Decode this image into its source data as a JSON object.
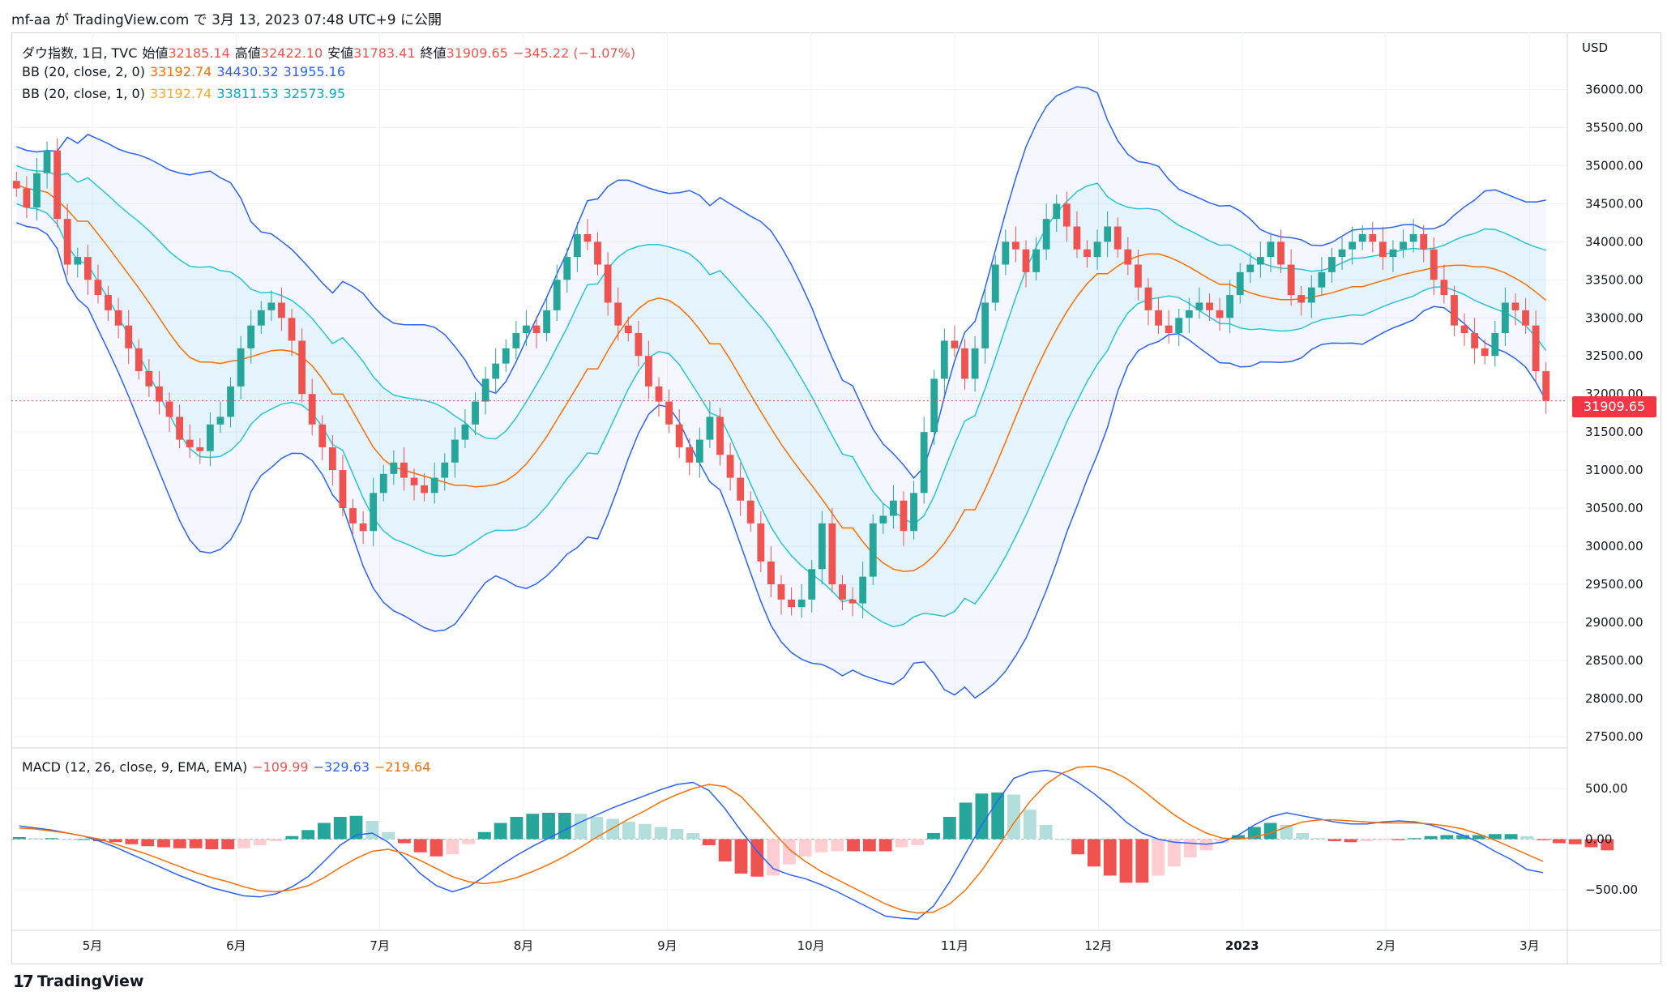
{
  "caption": "mf-aa が TradingView.com で 3月 13, 2023 07:48 UTC+9 に公開",
  "brand": "TradingView",
  "currency": "USD",
  "legend": {
    "symbol": "ダウ指数, 1日, TVC",
    "open_label": "始値",
    "open": "32185.14",
    "high_label": "高値",
    "high": "32422.10",
    "low_label": "安値",
    "low": "31783.41",
    "close_label": "終値",
    "close": "31909.65",
    "change": "−345.22 (−1.07%)",
    "bb2_label": "BB (20, close, 2, 0)",
    "bb2_basis": "33192.74",
    "bb2_upper": "34430.32",
    "bb2_lower": "31955.16",
    "bb1_label": "BB (20, close, 1, 0)",
    "bb1_basis": "33192.74",
    "bb1_upper": "33811.53",
    "bb1_lower": "32573.95",
    "macd_label": "MACD (12, 26, close, 9, EMA, EMA)",
    "macd_hist": "−109.99",
    "macd_line": "−329.63",
    "macd_signal": "−219.64"
  },
  "last_price_tag": "31909.65",
  "colors": {
    "up": "#26a69a",
    "down": "#ef5350",
    "bb2": "#2962ff",
    "bb1": "#26c6da",
    "basis": "#ff6d00",
    "hist_up_strong": "#26a69a",
    "hist_up_weak": "#b2dfdb",
    "hist_down_strong": "#ef5350",
    "hist_down_weak": "#ffcdd2"
  },
  "chart_data": [
    {
      "type": "candlestick",
      "y_axis_ticks": [
        27500,
        28000,
        28500,
        29000,
        29500,
        30000,
        30500,
        31000,
        31500,
        32000,
        32500,
        33000,
        33500,
        34000,
        34500,
        35000,
        35500,
        36000
      ],
      "y_tick_labels": [
        "27500.00",
        "28000.00",
        "28500.00",
        "29000.00",
        "29500.00",
        "30000.00",
        "30500.00",
        "31000.00",
        "31500.00",
        "32000.00",
        "32500.00",
        "33000.00",
        "33500.00",
        "34000.00",
        "34500.00",
        "35000.00",
        "35500.00",
        "36000.00"
      ],
      "ylim": [
        27350,
        36750
      ],
      "x_tick_labels": [
        "5月",
        "6月",
        "7月",
        "8月",
        "9月",
        "10月",
        "11月",
        "12月",
        "2023",
        "2月",
        "3月"
      ],
      "series": [
        {
          "name": "close",
          "values": [
            34700,
            34450,
            34900,
            35200,
            34300,
            33700,
            33800,
            33500,
            33300,
            33100,
            32900,
            32600,
            32300,
            32100,
            31900,
            31700,
            31400,
            31300,
            31250,
            31600,
            31700,
            32100,
            32600,
            32900,
            33100,
            33200,
            33000,
            32700,
            32000,
            31600,
            31300,
            31000,
            30500,
            30300,
            30200,
            30700,
            30950,
            31100,
            30900,
            30800,
            30700,
            30900,
            31100,
            31400,
            31600,
            31900,
            32200,
            32400,
            32600,
            32800,
            32900,
            32800,
            33100,
            33500,
            33800,
            34100,
            34000,
            33700,
            33200,
            32900,
            32800,
            32500,
            32100,
            31900,
            31600,
            31300,
            31100,
            31400,
            31700,
            31200,
            30900,
            30600,
            30300,
            29800,
            29500,
            29300,
            29200,
            29300,
            29700,
            30300,
            29500,
            29300,
            29250,
            29600,
            30300,
            30400,
            30600,
            30200,
            30700,
            31500,
            32200,
            32700,
            32600,
            32200,
            32600,
            33200,
            33700,
            34000,
            33900,
            33600,
            33900,
            34300,
            34500,
            34200,
            33900,
            33800,
            34000,
            34200,
            33900,
            33700,
            33400,
            33100,
            32900,
            32800,
            33000,
            33100,
            33200,
            33100,
            33000,
            33300,
            33600,
            33700,
            33800,
            34000,
            33700,
            33300,
            33200,
            33400,
            33600,
            33800,
            33900,
            34000,
            34100,
            34000,
            33800,
            33900,
            34000,
            34100,
            33900,
            33500,
            33300,
            32900,
            32800,
            32600,
            32500,
            32800,
            33200,
            33100,
            32900,
            32300,
            31910
          ]
        },
        {
          "name": "BB basis",
          "values": [
            34750,
            34700,
            34680,
            34650,
            34550,
            34420,
            34270,
            34100,
            33930,
            33750,
            33570,
            33390,
            33200,
            33000,
            32800,
            32620,
            32480,
            32420,
            32400,
            32430,
            32450,
            32490,
            32530,
            32570,
            32580,
            32560,
            32490,
            32370,
            32200,
            32000,
            31770,
            31530,
            31300,
            31140,
            31040,
            31000,
            30960,
            30920,
            30880,
            30840,
            30800,
            30780,
            30790,
            30810,
            30860,
            30950,
            31080,
            31250,
            31440,
            31660,
            31880,
            32100,
            32330,
            32570,
            32790,
            32980,
            33120,
            33220,
            33260,
            33230,
            33140,
            33010,
            32850,
            32660,
            32450,
            32220,
            31990,
            31770,
            31550,
            31340,
            31150,
            30970,
            30800,
            30620,
            30430,
            30240,
            30060,
            29900,
            29780,
            29700,
            29670,
            29680,
            29760,
            29880,
            30040,
            30240,
            30480,
            30750,
            31050,
            31370,
            31700,
            32020,
            32320,
            32600,
            32850,
            33080,
            33280,
            33450,
            33580,
            33680,
            33760,
            33810,
            33840,
            33840,
            33800,
            33740,
            33670,
            33590,
            33510,
            33440,
            33380,
            33330,
            33290,
            33260,
            33240,
            33240,
            33250,
            33270,
            33300,
            33330,
            33370,
            33410,
            33450,
            33490,
            33530,
            33570,
            33600,
            33630,
            33660,
            33680,
            33690,
            33690,
            33670,
            33640,
            33590,
            33520,
            33440,
            33340,
            33230
          ]
        }
      ]
    },
    {
      "type": "macd",
      "y_axis_ticks": [
        -500,
        0,
        500
      ],
      "y_tick_labels": [
        "−500.00",
        "0.00",
        "500.00"
      ],
      "ylim": [
        -900,
        900
      ],
      "series": [
        {
          "name": "MACD",
          "values": [
            130,
            110,
            90,
            60,
            30,
            -20,
            -80,
            -150,
            -220,
            -290,
            -360,
            -420,
            -480,
            -520,
            -560,
            -570,
            -540,
            -470,
            -370,
            -220,
            -60,
            40,
            60,
            -30,
            -180,
            -340,
            -460,
            -520,
            -470,
            -370,
            -260,
            -160,
            -70,
            10,
            90,
            170,
            240,
            310,
            370,
            430,
            490,
            540,
            560,
            480,
            300,
            80,
            -120,
            -290,
            -350,
            -390,
            -450,
            -520,
            -600,
            -680,
            -760,
            -780,
            -790,
            -660,
            -420,
            -140,
            140,
            380,
            600,
            660,
            680,
            650,
            560,
            450,
            320,
            170,
            60,
            0,
            -30,
            -40,
            -50,
            -30,
            40,
            140,
            220,
            260,
            230,
            200,
            170,
            150,
            150,
            170,
            180,
            170,
            140,
            90,
            40,
            -30,
            -120,
            -200,
            -300,
            -330
          ]
        },
        {
          "name": "Signal",
          "values": [
            110,
            100,
            80,
            60,
            30,
            0,
            -50,
            -100,
            -150,
            -210,
            -270,
            -330,
            -380,
            -420,
            -470,
            -510,
            -520,
            -500,
            -460,
            -380,
            -280,
            -190,
            -120,
            -100,
            -140,
            -210,
            -290,
            -370,
            -420,
            -440,
            -420,
            -380,
            -320,
            -250,
            -170,
            -80,
            20,
            110,
            200,
            280,
            370,
            440,
            500,
            540,
            520,
            420,
            250,
            70,
            -100,
            -220,
            -320,
            -400,
            -480,
            -560,
            -640,
            -700,
            -730,
            -720,
            -640,
            -500,
            -310,
            -80,
            160,
            370,
            540,
            650,
            710,
            720,
            680,
            600,
            490,
            360,
            240,
            140,
            60,
            10,
            0,
            20,
            60,
            120,
            170,
            190,
            190,
            180,
            170,
            160,
            160,
            160,
            150,
            130,
            100,
            50,
            -10,
            -80,
            -150,
            -220
          ]
        },
        {
          "name": "Histogram",
          "values": [
            20,
            10,
            10,
            0,
            0,
            -20,
            -30,
            -50,
            -70,
            -80,
            -90,
            -90,
            -100,
            -100,
            -90,
            -60,
            -20,
            30,
            90,
            160,
            220,
            230,
            180,
            70,
            -40,
            -130,
            -170,
            -150,
            -50,
            70,
            160,
            220,
            250,
            260,
            260,
            250,
            220,
            200,
            170,
            150,
            120,
            100,
            60,
            -60,
            -220,
            -340,
            -370,
            -360,
            -250,
            -170,
            -130,
            -120,
            -120,
            -120,
            -120,
            -80,
            -60,
            60,
            220,
            360,
            450,
            460,
            440,
            290,
            140,
            0,
            -150,
            -270,
            -360,
            -430,
            -430,
            -360,
            -270,
            -180,
            -110,
            -40,
            40,
            120,
            160,
            140,
            60,
            10,
            -20,
            -30,
            -20,
            -10,
            -10,
            10,
            30,
            40,
            40,
            40,
            50,
            50,
            30,
            -10,
            -40,
            -50,
            -80,
            -110
          ]
        }
      ]
    }
  ]
}
